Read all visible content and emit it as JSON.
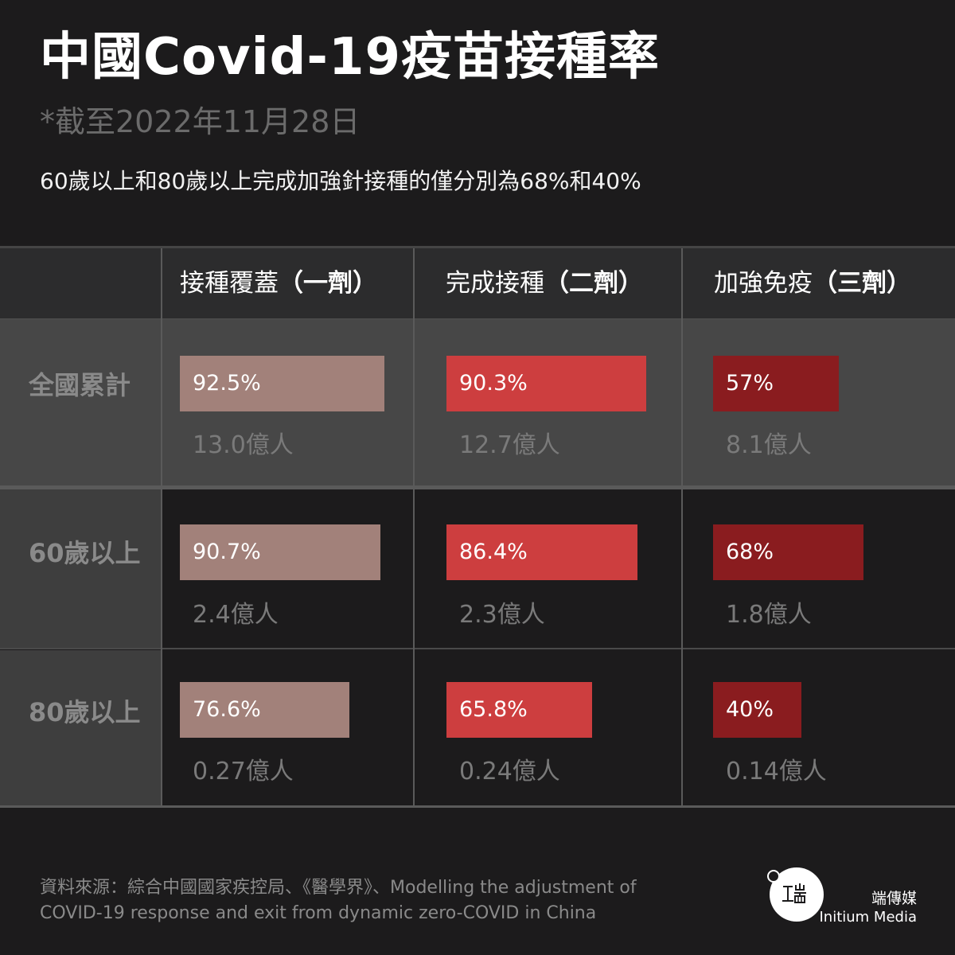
{
  "header": {
    "title": "中國Covid-19疫苗接種率",
    "date": "*截至2022年11月28日",
    "subtitle": "60歲以上和80歲以上完成加強針接種的僅分別為68%和40%"
  },
  "chart_data": {
    "type": "bar",
    "title": "中國Covid-19疫苗接種率",
    "columns": [
      {
        "name": "接種覆蓋",
        "suffix": "（一劑）",
        "color": "#a2817a"
      },
      {
        "name": "完成接種",
        "suffix": "（二劑）",
        "color": "#cd3e3f"
      },
      {
        "name": "加強免疫",
        "suffix": "（三劑）",
        "color": "#8a1c1f"
      }
    ],
    "rows": [
      {
        "label": "全國累計",
        "values": [
          92.5,
          90.3,
          57
        ],
        "value_labels": [
          "92.5%",
          "90.3%",
          "57%"
        ],
        "counts": [
          "13.0億人",
          "12.7億人",
          "8.1億人"
        ]
      },
      {
        "label": "60歲以上",
        "values": [
          90.7,
          86.4,
          68
        ],
        "value_labels": [
          "90.7%",
          "86.4%",
          "68%"
        ],
        "counts": [
          "2.4億人",
          "2.3億人",
          "1.8億人"
        ]
      },
      {
        "label": "80歲以上",
        "values": [
          76.6,
          65.8,
          40
        ],
        "value_labels": [
          "76.6%",
          "65.8%",
          "40%"
        ],
        "counts": [
          "0.27億人",
          "0.24億人",
          "0.14億人"
        ]
      }
    ],
    "unit": "%",
    "ylim": [
      0,
      100
    ]
  },
  "footer": {
    "source_line1": "資料來源：綜合中國國家疾控局、《醫學界》、Modelling the adjustment of",
    "source_line2": "COVID-19 response and exit from dynamic zero-COVID in China",
    "brand_cn": "端傳媒",
    "brand_en": "Initium Media",
    "logo_icon": "initium-logo-icon"
  }
}
